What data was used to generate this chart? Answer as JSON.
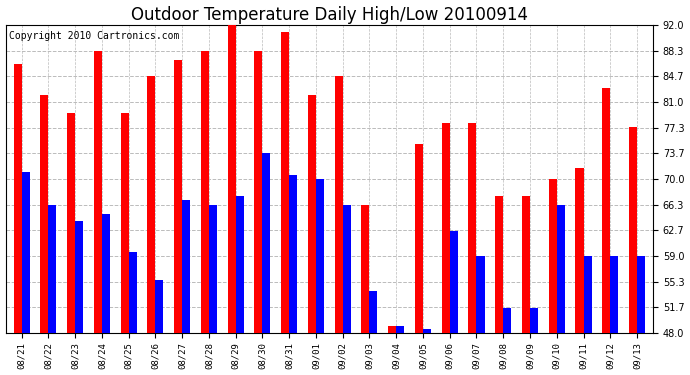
{
  "title": "Outdoor Temperature Daily High/Low 20100914",
  "copyright": "Copyright 2010 Cartronics.com",
  "categories": [
    "08/21",
    "08/22",
    "08/23",
    "08/24",
    "08/25",
    "08/26",
    "08/27",
    "08/28",
    "08/29",
    "08/30",
    "08/31",
    "09/01",
    "09/02",
    "09/03",
    "09/04",
    "09/05",
    "09/06",
    "09/07",
    "09/08",
    "09/09",
    "09/10",
    "09/11",
    "09/12",
    "09/13"
  ],
  "highs": [
    86.5,
    82.0,
    79.5,
    88.3,
    79.5,
    84.7,
    87.0,
    88.3,
    92.0,
    88.3,
    91.0,
    82.0,
    84.7,
    66.3,
    49.0,
    75.0,
    78.0,
    78.0,
    67.5,
    67.5,
    70.0,
    71.5,
    83.0,
    77.5
  ],
  "lows": [
    71.0,
    66.3,
    64.0,
    65.0,
    59.5,
    55.5,
    67.0,
    66.3,
    67.5,
    73.7,
    70.5,
    70.0,
    66.3,
    54.0,
    49.0,
    48.5,
    62.5,
    59.0,
    51.5,
    51.5,
    66.3,
    59.0,
    59.0,
    59.0
  ],
  "yticks": [
    48.0,
    51.7,
    55.3,
    59.0,
    62.7,
    66.3,
    70.0,
    73.7,
    77.3,
    81.0,
    84.7,
    88.3,
    92.0
  ],
  "ylim": [
    48.0,
    92.0
  ],
  "ymin": 48.0,
  "bar_width": 0.3,
  "high_color": "#ff0000",
  "low_color": "#0000ff",
  "bg_color": "#ffffff",
  "grid_color": "#bbbbbb",
  "title_fontsize": 12,
  "copyright_fontsize": 7
}
